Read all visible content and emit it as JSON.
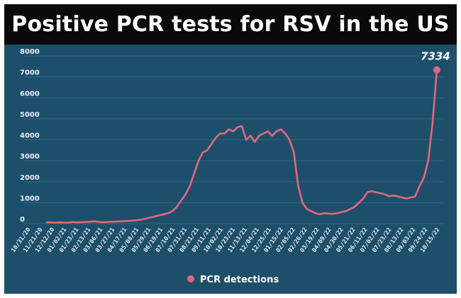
{
  "chart_data": {
    "type": "line",
    "title": "Positive PCR tests for RSV in the US",
    "xlabel": "",
    "ylabel": "",
    "ylim": [
      0,
      8000
    ],
    "yticks": [
      0,
      1000,
      2000,
      3000,
      4000,
      5000,
      6000,
      7000,
      8000
    ],
    "grid": true,
    "legend": "bottom-center",
    "colors": {
      "line": "#e0687a",
      "background": "#1d4f6b",
      "title_bar": "#0a0a0a"
    },
    "xtick_labels": [
      "10/31/20",
      "11/21/20",
      "12/12/20",
      "01/02/21",
      "01/23/21",
      "02/13/21",
      "03/06/21",
      "03/27/21",
      "04/17/21",
      "05/08/21",
      "05/29/21",
      "06/19/21",
      "07/10/21",
      "07/31/21",
      "08/21/21",
      "09/11/21",
      "10/02/21",
      "10/23/21",
      "11/13/21",
      "12/04/21",
      "12/25/21",
      "01/15/22",
      "02/05/22",
      "02/26/22",
      "03/19/22",
      "04/09/22",
      "04/30/22",
      "05/21/22",
      "06/11/22",
      "07/02/22",
      "07/23/22",
      "08/13/22",
      "09/03/22",
      "09/24/22",
      "10/15/22"
    ],
    "annotation": {
      "text": "7334"
    },
    "series": [
      {
        "name": "PCR detections",
        "values": [
          60,
          60,
          50,
          60,
          50,
          50,
          80,
          60,
          70,
          80,
          90,
          110,
          80,
          70,
          80,
          90,
          100,
          110,
          120,
          130,
          150,
          170,
          200,
          250,
          300,
          350,
          400,
          450,
          500,
          600,
          800,
          1100,
          1400,
          1800,
          2400,
          3000,
          3400,
          3500,
          3800,
          4100,
          4300,
          4300,
          4500,
          4400,
          4600,
          4650,
          4000,
          4200,
          3900,
          4200,
          4300,
          4400,
          4200,
          4400,
          4500,
          4300,
          4000,
          3400,
          1800,
          1000,
          700,
          600,
          500,
          450,
          500,
          480,
          470,
          500,
          550,
          600,
          700,
          800,
          1000,
          1200,
          1500,
          1550,
          1500,
          1450,
          1400,
          1300,
          1350,
          1300,
          1250,
          1200,
          1250,
          1300,
          1800,
          2200,
          3000,
          4800,
          7334
        ]
      }
    ]
  }
}
